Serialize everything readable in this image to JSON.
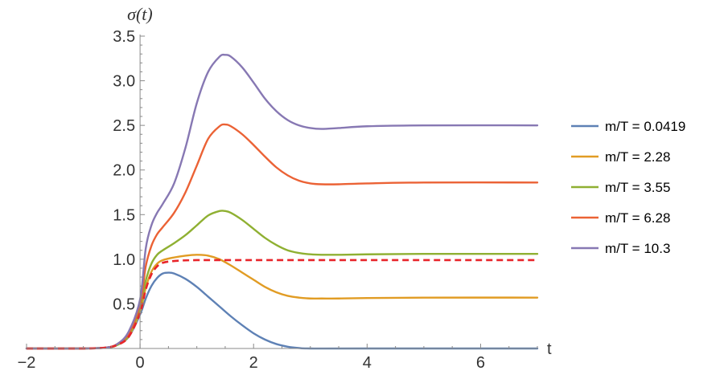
{
  "chart_data": {
    "type": "line",
    "title": "",
    "xlabel": "t",
    "ylabel": "σ(t)",
    "xlim": [
      -2,
      7
    ],
    "ylim": [
      0,
      3.5
    ],
    "xticks": [
      {
        "value": -2,
        "label": "−2"
      },
      {
        "value": 0,
        "label": "0"
      },
      {
        "value": 2,
        "label": "2"
      },
      {
        "value": 4,
        "label": "4"
      },
      {
        "value": 6,
        "label": "6"
      }
    ],
    "yticks": [
      {
        "value": 0.5,
        "label": "0.5"
      },
      {
        "value": 1.0,
        "label": "1.0"
      },
      {
        "value": 1.5,
        "label": "1.5"
      },
      {
        "value": 2.0,
        "label": "2.0"
      },
      {
        "value": 2.5,
        "label": "2.5"
      },
      {
        "value": 3.0,
        "label": "3.0"
      },
      {
        "value": 3.5,
        "label": "3.5"
      }
    ],
    "grid": false,
    "legend_position": "right",
    "series": [
      {
        "name": "m/T = 0.0419",
        "color": "#5E81B5",
        "dashed": false,
        "points": [
          [
            -2,
            0
          ],
          [
            -1,
            0
          ],
          [
            -0.6,
            0.01
          ],
          [
            -0.4,
            0.04
          ],
          [
            -0.2,
            0.13
          ],
          [
            0,
            0.38
          ],
          [
            0.1,
            0.56
          ],
          [
            0.2,
            0.7
          ],
          [
            0.3,
            0.79
          ],
          [
            0.4,
            0.84
          ],
          [
            0.5,
            0.85
          ],
          [
            0.6,
            0.84
          ],
          [
            0.8,
            0.78
          ],
          [
            1.0,
            0.69
          ],
          [
            1.2,
            0.58
          ],
          [
            1.4,
            0.47
          ],
          [
            1.6,
            0.36
          ],
          [
            1.8,
            0.26
          ],
          [
            2.0,
            0.17
          ],
          [
            2.2,
            0.1
          ],
          [
            2.4,
            0.05
          ],
          [
            2.6,
            0.02
          ],
          [
            2.8,
            0.005
          ],
          [
            3.0,
            0
          ],
          [
            4,
            0
          ],
          [
            7,
            0
          ]
        ]
      },
      {
        "name": "m/T = 2.28",
        "color": "#E19C24",
        "dashed": false,
        "points": [
          [
            -2,
            0
          ],
          [
            -1,
            0
          ],
          [
            -0.6,
            0.01
          ],
          [
            -0.4,
            0.04
          ],
          [
            -0.2,
            0.14
          ],
          [
            0,
            0.42
          ],
          [
            0.1,
            0.68
          ],
          [
            0.2,
            0.86
          ],
          [
            0.3,
            0.95
          ],
          [
            0.4,
            0.99
          ],
          [
            0.6,
            1.02
          ],
          [
            0.8,
            1.04
          ],
          [
            1.0,
            1.05
          ],
          [
            1.2,
            1.04
          ],
          [
            1.4,
            1.0
          ],
          [
            1.6,
            0.93
          ],
          [
            1.8,
            0.85
          ],
          [
            2.0,
            0.77
          ],
          [
            2.2,
            0.69
          ],
          [
            2.4,
            0.63
          ],
          [
            2.6,
            0.59
          ],
          [
            2.8,
            0.57
          ],
          [
            3.0,
            0.56
          ],
          [
            3.2,
            0.56
          ],
          [
            3.5,
            0.56
          ],
          [
            4.0,
            0.565
          ],
          [
            5.0,
            0.57
          ],
          [
            7.0,
            0.57
          ]
        ]
      },
      {
        "name": "m/T = 3.55",
        "color": "#8FB032",
        "dashed": false,
        "points": [
          [
            -2,
            0
          ],
          [
            -1,
            0
          ],
          [
            -0.6,
            0.01
          ],
          [
            -0.4,
            0.04
          ],
          [
            -0.2,
            0.15
          ],
          [
            0,
            0.46
          ],
          [
            0.1,
            0.76
          ],
          [
            0.2,
            0.95
          ],
          [
            0.3,
            1.05
          ],
          [
            0.4,
            1.1
          ],
          [
            0.6,
            1.18
          ],
          [
            0.8,
            1.27
          ],
          [
            1.0,
            1.38
          ],
          [
            1.2,
            1.49
          ],
          [
            1.4,
            1.54
          ],
          [
            1.5,
            1.54
          ],
          [
            1.6,
            1.52
          ],
          [
            1.8,
            1.44
          ],
          [
            2.0,
            1.34
          ],
          [
            2.2,
            1.24
          ],
          [
            2.4,
            1.16
          ],
          [
            2.6,
            1.1
          ],
          [
            2.8,
            1.07
          ],
          [
            3.0,
            1.055
          ],
          [
            3.2,
            1.05
          ],
          [
            3.5,
            1.05
          ],
          [
            4.0,
            1.055
          ],
          [
            5.0,
            1.06
          ],
          [
            7.0,
            1.06
          ]
        ]
      },
      {
        "name": "m/T = 6.28",
        "color": "#EB6235",
        "dashed": false,
        "points": [
          [
            -2,
            0
          ],
          [
            -1,
            0
          ],
          [
            -0.6,
            0.01
          ],
          [
            -0.4,
            0.05
          ],
          [
            -0.2,
            0.17
          ],
          [
            0,
            0.5
          ],
          [
            0.1,
            0.92
          ],
          [
            0.2,
            1.15
          ],
          [
            0.3,
            1.28
          ],
          [
            0.4,
            1.36
          ],
          [
            0.6,
            1.52
          ],
          [
            0.8,
            1.75
          ],
          [
            1.0,
            2.05
          ],
          [
            1.2,
            2.35
          ],
          [
            1.4,
            2.49
          ],
          [
            1.5,
            2.51
          ],
          [
            1.6,
            2.49
          ],
          [
            1.8,
            2.4
          ],
          [
            2.0,
            2.28
          ],
          [
            2.2,
            2.15
          ],
          [
            2.4,
            2.03
          ],
          [
            2.6,
            1.94
          ],
          [
            2.8,
            1.88
          ],
          [
            3.0,
            1.85
          ],
          [
            3.2,
            1.84
          ],
          [
            3.5,
            1.84
          ],
          [
            4.0,
            1.85
          ],
          [
            5.0,
            1.86
          ],
          [
            7.0,
            1.86
          ]
        ]
      },
      {
        "name": "m/T = 10.3",
        "color": "#8778B3",
        "dashed": false,
        "points": [
          [
            -2,
            0
          ],
          [
            -1,
            0
          ],
          [
            -0.6,
            0.01
          ],
          [
            -0.4,
            0.05
          ],
          [
            -0.2,
            0.19
          ],
          [
            0,
            0.55
          ],
          [
            0.1,
            1.12
          ],
          [
            0.2,
            1.38
          ],
          [
            0.3,
            1.52
          ],
          [
            0.4,
            1.62
          ],
          [
            0.6,
            1.85
          ],
          [
            0.8,
            2.25
          ],
          [
            1.0,
            2.75
          ],
          [
            1.2,
            3.1
          ],
          [
            1.4,
            3.27
          ],
          [
            1.5,
            3.29
          ],
          [
            1.6,
            3.27
          ],
          [
            1.8,
            3.15
          ],
          [
            2.0,
            2.98
          ],
          [
            2.2,
            2.8
          ],
          [
            2.4,
            2.66
          ],
          [
            2.6,
            2.56
          ],
          [
            2.8,
            2.5
          ],
          [
            3.0,
            2.47
          ],
          [
            3.2,
            2.46
          ],
          [
            3.5,
            2.47
          ],
          [
            4.0,
            2.49
          ],
          [
            5.0,
            2.5
          ],
          [
            7.0,
            2.5
          ]
        ]
      },
      {
        "name": "",
        "color": "#E8252A",
        "dashed": true,
        "points": [
          [
            -2,
            0
          ],
          [
            -1,
            0
          ],
          [
            -0.6,
            0.01
          ],
          [
            -0.4,
            0.04
          ],
          [
            -0.2,
            0.13
          ],
          [
            0,
            0.4
          ],
          [
            0.1,
            0.66
          ],
          [
            0.2,
            0.83
          ],
          [
            0.3,
            0.92
          ],
          [
            0.4,
            0.96
          ],
          [
            0.6,
            0.98
          ],
          [
            1.0,
            0.99
          ],
          [
            2.0,
            0.99
          ],
          [
            7.0,
            0.99
          ]
        ]
      }
    ]
  }
}
